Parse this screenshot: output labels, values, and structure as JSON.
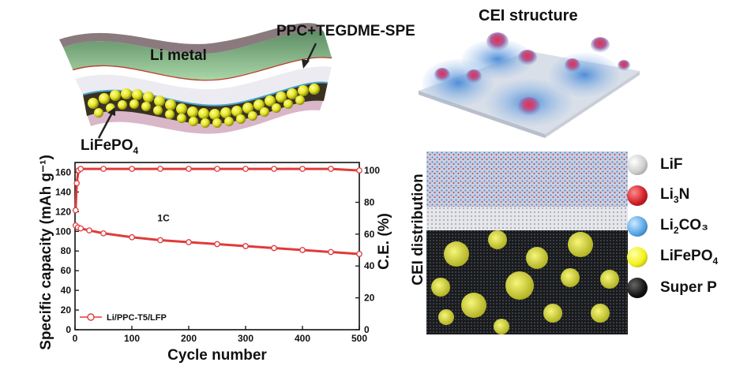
{
  "labels": {
    "li_metal": "Li metal",
    "spe": "PPC+TEGDME-SPE",
    "cathode_main": "LiFePO",
    "cathode_sub": "4",
    "cei_structure": "CEI structure",
    "cei_distribution": "CEI distribution"
  },
  "legend": [
    {
      "main": "LiF",
      "sub": "",
      "tail": "",
      "color": "#cfcfcf"
    },
    {
      "main": "Li",
      "sub": "3",
      "tail": "N",
      "color": "#d0232a"
    },
    {
      "main": "Li",
      "sub": "2",
      "tail": "CO₃",
      "color": "#5aa8e6"
    },
    {
      "main": "LiFePO",
      "sub": "4",
      "tail": "",
      "color": "#f2f21c"
    },
    {
      "main": "Super P",
      "sub": "",
      "tail": "",
      "color": "#111111"
    }
  ],
  "chart_data": {
    "type": "scatter",
    "xlabel": "Cycle number",
    "ylabel": "Specific capacity (mAh g⁻¹)",
    "y2label": "C.E. (%)",
    "annotation": "1C",
    "xlim": [
      0,
      500
    ],
    "ylim": [
      0,
      170
    ],
    "y2lim": [
      0,
      105
    ],
    "xticks": [
      0,
      100,
      200,
      300,
      400,
      500
    ],
    "yticks": [
      0,
      20,
      40,
      60,
      80,
      100,
      120,
      140,
      160
    ],
    "y2ticks": [
      0,
      20,
      40,
      60,
      80,
      100
    ],
    "series": [
      {
        "name": "Li/PPC-T5/LFP",
        "axis": "left",
        "color": "#e03a3a",
        "x": [
          1,
          5,
          10,
          25,
          50,
          100,
          150,
          200,
          250,
          300,
          350,
          400,
          450,
          500
        ],
        "y": [
          106,
          104,
          103,
          101,
          98,
          94,
          91,
          89,
          87,
          85,
          83,
          81,
          79,
          77
        ]
      },
      {
        "name": "",
        "axis": "right",
        "color": "#e03a3a",
        "x": [
          1,
          3,
          6,
          10,
          50,
          100,
          150,
          200,
          250,
          300,
          350,
          400,
          450,
          500
        ],
        "y": [
          75,
          92,
          100,
          101,
          101,
          101,
          101,
          101,
          101,
          101,
          101,
          101,
          101,
          100
        ]
      }
    ]
  }
}
